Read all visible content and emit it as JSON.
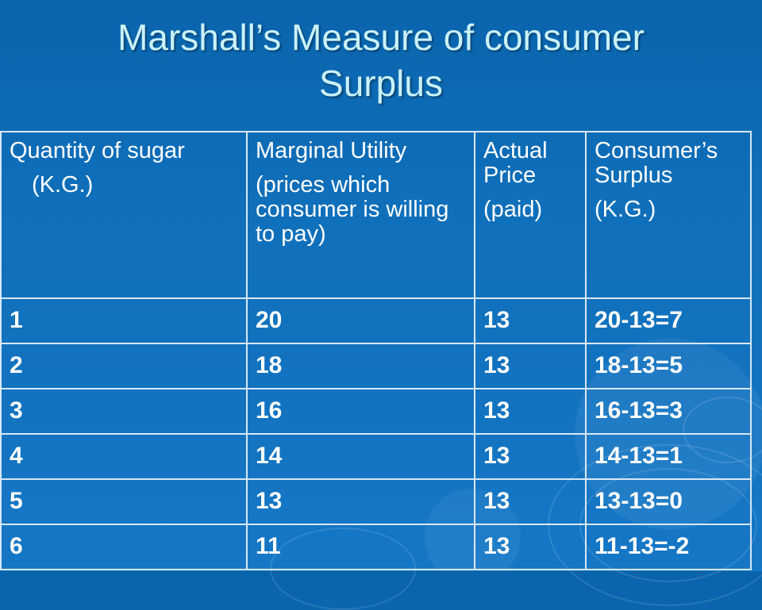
{
  "slide": {
    "title_line1": "Marshall’s Measure of consumer",
    "title_line2": "Surplus"
  },
  "table": {
    "headers": [
      {
        "line1": "Quantity of sugar",
        "line2": "(K.G.)"
      },
      {
        "line1": "Marginal Utility",
        "line2": "(prices which consumer is willing to pay)"
      },
      {
        "line1": "Actual Price",
        "line2": "(paid)"
      },
      {
        "line1": "Consumer’s Surplus",
        "line2": "(K.G.)"
      }
    ],
    "rows": [
      {
        "qty": "1",
        "mu": "20",
        "price": "13",
        "surplus": "20-13=7"
      },
      {
        "qty": "2",
        "mu": "18",
        "price": "13",
        "surplus": "18-13=5"
      },
      {
        "qty": "3",
        "mu": "16",
        "price": "13",
        "surplus": "16-13=3"
      },
      {
        "qty": "4",
        "mu": "14",
        "price": "13",
        "surplus": "14-13=1"
      },
      {
        "qty": "5",
        "mu": "13",
        "price": "13",
        "surplus": "13-13=0"
      },
      {
        "qty": "6",
        "mu": "11",
        "price": "13",
        "surplus": "11-13=-2"
      }
    ]
  }
}
